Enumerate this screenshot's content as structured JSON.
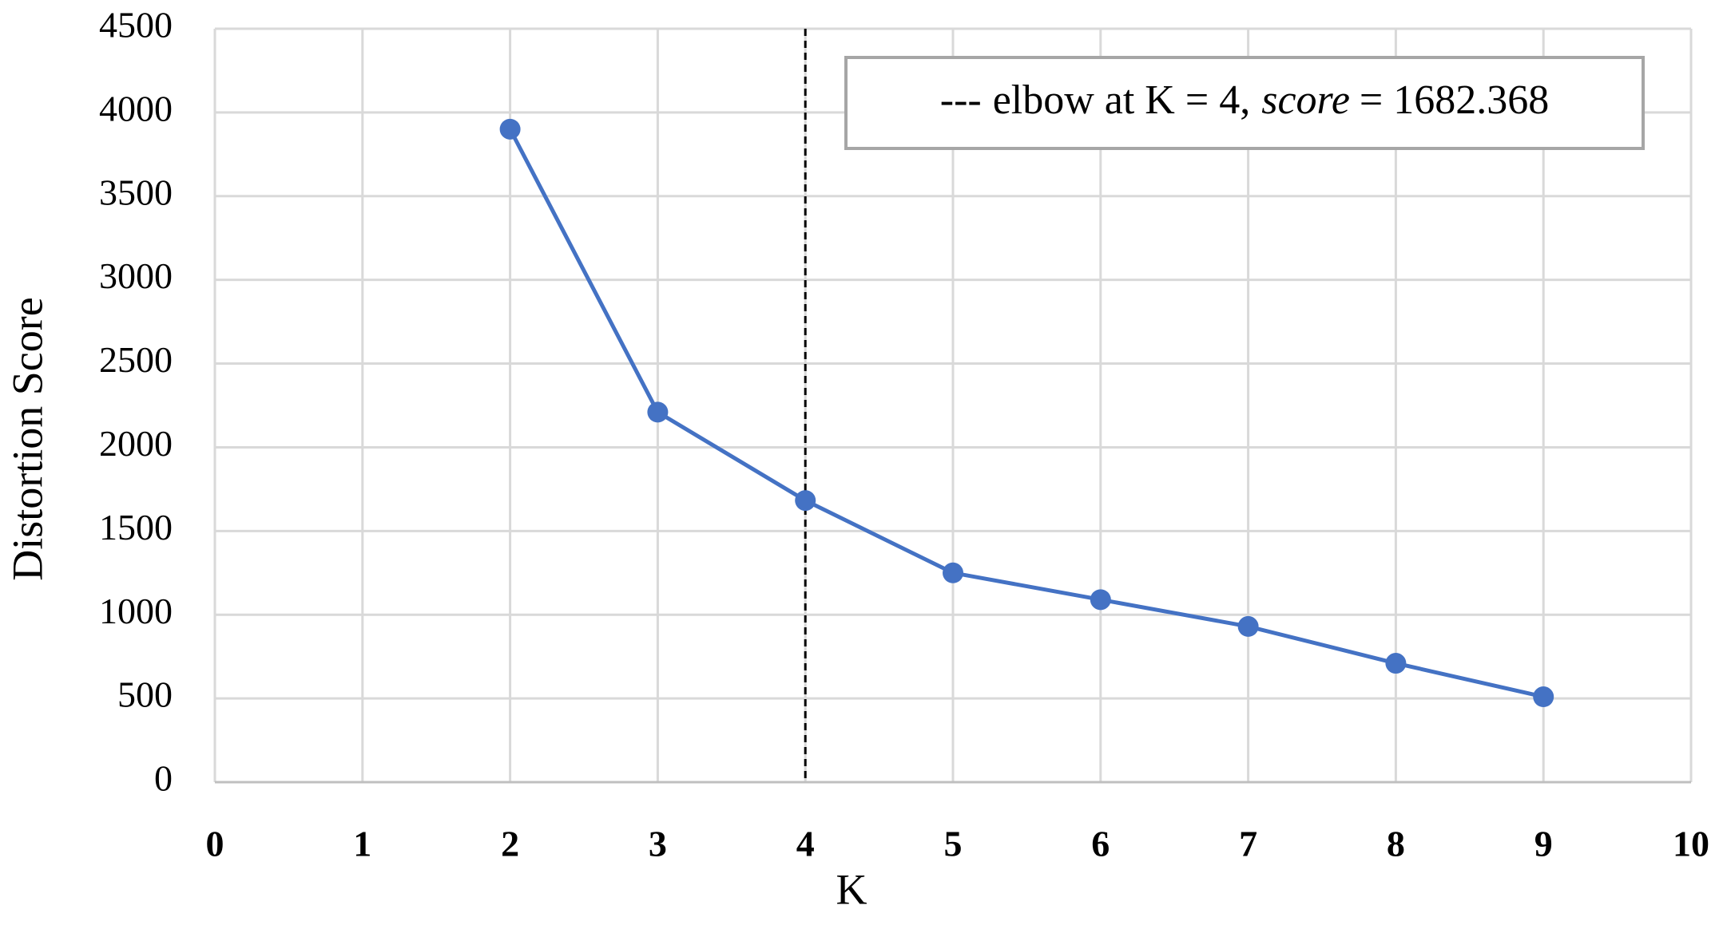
{
  "chart_data": {
    "type": "line",
    "x_label": "K",
    "y_label": "Distortion Score",
    "x": [
      2,
      3,
      4,
      5,
      6,
      7,
      8,
      9
    ],
    "series": [
      {
        "name": "Distortion Score",
        "color": "#4472c4",
        "values": [
          3900,
          2210,
          1682.368,
          1250,
          1090,
          930,
          710,
          510
        ]
      }
    ],
    "xlim": [
      0,
      10
    ],
    "xticks": [
      0,
      1,
      2,
      3,
      4,
      5,
      6,
      7,
      8,
      9,
      10
    ],
    "ylim": [
      0,
      4500
    ],
    "yticks": [
      0,
      500,
      1000,
      1500,
      2000,
      2500,
      3000,
      3500,
      4000,
      4500
    ],
    "grid": true,
    "elbow_x": 4,
    "annotation": {
      "dash": "---",
      "lead": "elbow at K = 4,",
      "italic": "score",
      "tail": "= 1682.368"
    }
  }
}
